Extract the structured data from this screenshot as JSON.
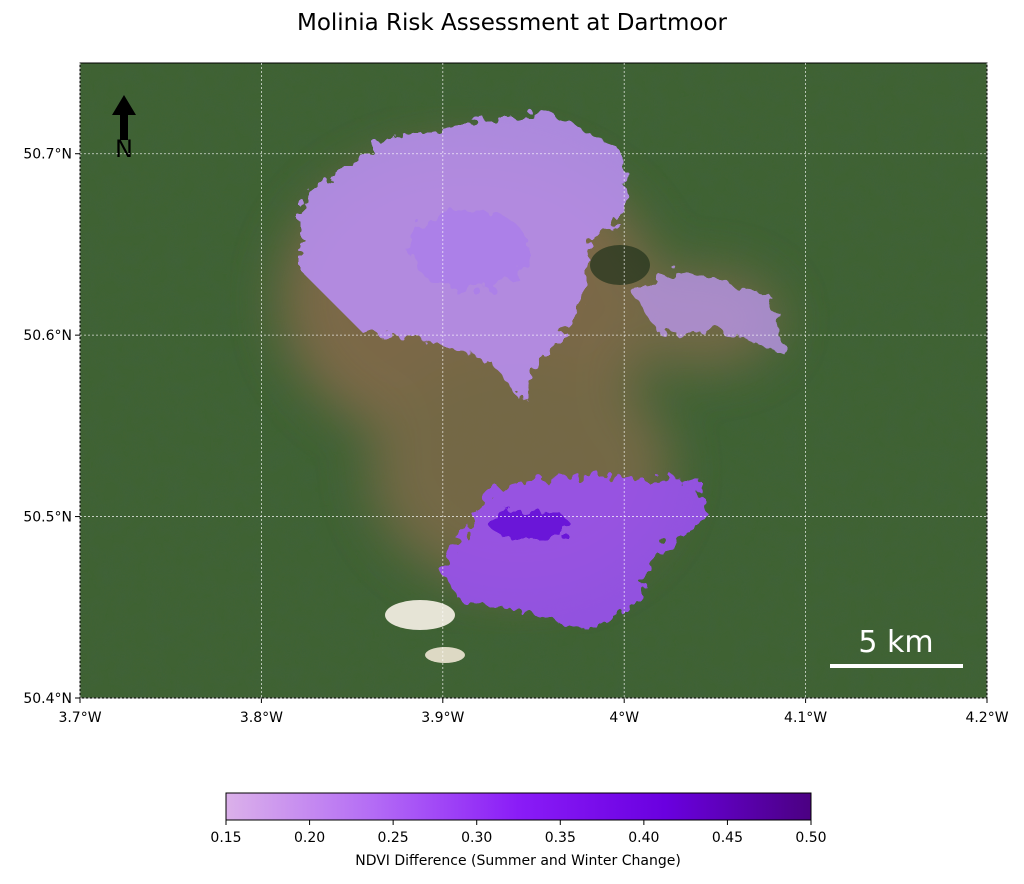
{
  "chart_data": {
    "type": "map",
    "title": "Molinia Risk Assessment at Dartmoor",
    "xlim": [
      -3.7,
      -4.2
    ],
    "xticks": [
      {
        "value": -3.7,
        "label": "3.7°W"
      },
      {
        "value": -3.8,
        "label": "3.8°W"
      },
      {
        "value": -3.9,
        "label": "3.9°W"
      },
      {
        "value": -4.0,
        "label": "4°W"
      },
      {
        "value": -4.1,
        "label": "4.1°W"
      },
      {
        "value": -4.2,
        "label": "4.2°W"
      }
    ],
    "ylim": [
      50.4,
      50.75
    ],
    "yticks": [
      {
        "value": 50.4,
        "label": "50.4°N"
      },
      {
        "value": 50.5,
        "label": "50.5°N"
      },
      {
        "value": 50.6,
        "label": "50.6°N"
      },
      {
        "value": 50.7,
        "label": "50.7°N"
      }
    ],
    "grid": true,
    "north_label": "N",
    "scale_bar_label": "5 km",
    "colorbar": {
      "label": "NDVI Difference (Summer and Winter Change)",
      "lim": [
        0.15,
        0.5
      ],
      "ticks": [
        0.15,
        {
          "value": 0.2,
          "label": "0.20"
        },
        0.25,
        {
          "value": 0.3,
          "label": "0.30"
        },
        0.35,
        {
          "value": 0.4,
          "label": "0.40"
        },
        0.45,
        {
          "value": 0.5,
          "label": "0.50"
        }
      ],
      "colors": [
        "#dbb1ea",
        "#b46cf5",
        "#8a1cf7",
        "#6a00e0",
        "#4b0082"
      ]
    }
  }
}
